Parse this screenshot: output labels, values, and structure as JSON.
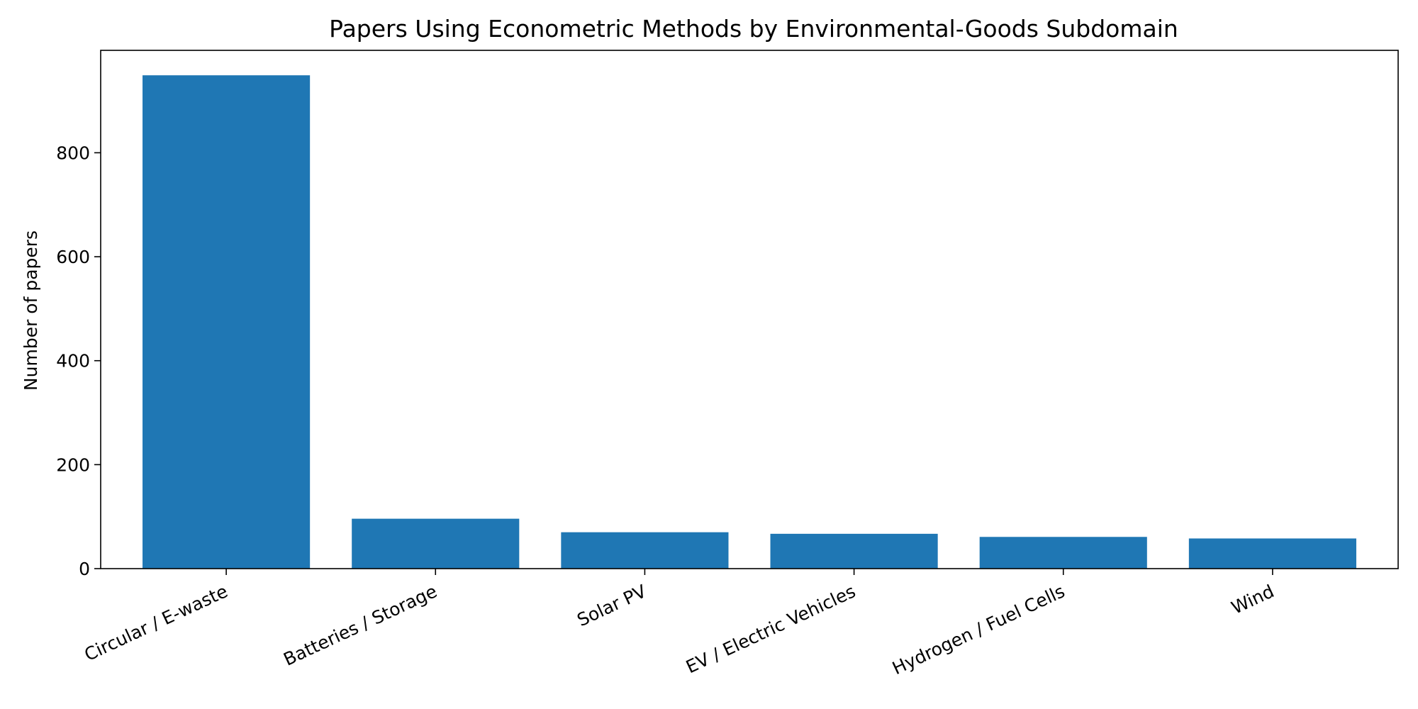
{
  "chart_data": {
    "type": "bar",
    "title": "Papers Using Econometric Methods by Environmental-Goods Subdomain",
    "xlabel": "",
    "ylabel": "Number of papers",
    "categories": [
      "Circular / E-waste",
      "Batteries / Storage",
      "Solar PV",
      "EV / Electric Vehicles",
      "Hydrogen / Fuel Cells",
      "Wind"
    ],
    "values": [
      949,
      96,
      70,
      67,
      61,
      58
    ],
    "ylim": [
      0,
      997
    ],
    "yticks": [
      0,
      200,
      400,
      600,
      800
    ],
    "grid": false,
    "legend": "none",
    "bar_color": "#1f77b4"
  }
}
